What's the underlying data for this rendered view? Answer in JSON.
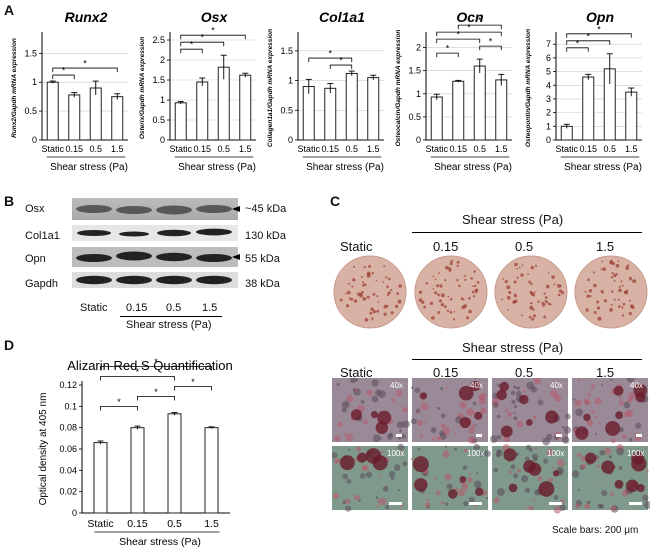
{
  "panels": {
    "a": "A",
    "b": "B",
    "c": "C",
    "d": "D"
  },
  "chart_data": [
    {
      "type": "bar",
      "title": "Runx2",
      "ylabel": "Runx2/Gapdh mRNA expression",
      "xlabel": "Shear stress (Pa)",
      "categories": [
        "Static",
        "0.15",
        "0.5",
        "1.5"
      ],
      "values": [
        1.0,
        0.78,
        0.9,
        0.75
      ],
      "errors": [
        0.02,
        0.04,
        0.12,
        0.05
      ],
      "ylim": [
        0,
        1.8
      ],
      "yticks": [
        0,
        0.5,
        1,
        1.5
      ],
      "yticklabels": [
        "0",
        "0.5",
        "1",
        "1.5"
      ],
      "grid": true,
      "sig": [
        {
          "from": 0,
          "to": 1,
          "label": "*"
        },
        {
          "from": 0,
          "to": 3,
          "label": "*"
        }
      ]
    },
    {
      "type": "bar",
      "title": "Osx",
      "ylabel": "Osterix/Gapdh mRNA expression",
      "xlabel": "Shear stress (Pa)",
      "categories": [
        "Static",
        "0.15",
        "0.5",
        "1.5"
      ],
      "values": [
        0.93,
        1.45,
        1.82,
        1.62
      ],
      "errors": [
        0.03,
        0.1,
        0.3,
        0.05
      ],
      "ylim": [
        0,
        2.6
      ],
      "yticks": [
        0,
        0.5,
        1,
        1.5,
        2,
        2.5
      ],
      "yticklabels": [
        "0",
        "0.5",
        "1",
        "1.5",
        "2",
        "2.5"
      ],
      "grid": true,
      "sig": [
        {
          "from": 0,
          "to": 1,
          "label": "*"
        },
        {
          "from": 0,
          "to": 2,
          "label": "*"
        },
        {
          "from": 0,
          "to": 3,
          "label": "*"
        }
      ]
    },
    {
      "type": "bar",
      "title": "Col1a1",
      "ylabel": "Collagen1a1/Gapdh mRNA expression",
      "xlabel": "Shear stress (Pa)",
      "categories": [
        "Static",
        "0.15",
        "0.5",
        "1.5"
      ],
      "values": [
        0.9,
        0.87,
        1.12,
        1.05
      ],
      "errors": [
        0.12,
        0.08,
        0.04,
        0.04
      ],
      "ylim": [
        0,
        1.75
      ],
      "yticks": [
        0,
        0.5,
        1,
        1.5
      ],
      "yticklabels": [
        "0",
        "0.5",
        "1",
        "1.5"
      ],
      "grid": true,
      "sig": [
        {
          "from": 1,
          "to": 2,
          "label": "*"
        },
        {
          "from": 0,
          "to": 2,
          "label": "*"
        }
      ]
    },
    {
      "type": "bar",
      "title": "Ocn",
      "ylabel": "Osteocalcin/Gapdh mRNA expression",
      "xlabel": "Shear stress (Pa)",
      "categories": [
        "Static",
        "0.15",
        "0.5",
        "1.5"
      ],
      "values": [
        0.93,
        1.27,
        1.6,
        1.3
      ],
      "errors": [
        0.06,
        0.02,
        0.15,
        0.12
      ],
      "ylim": [
        0,
        2.25
      ],
      "yticks": [
        0,
        0.5,
        1,
        1.5,
        2
      ],
      "yticklabels": [
        "0",
        "0.5",
        "1",
        "1.5",
        "2"
      ],
      "grid": true,
      "sig": [
        {
          "from": 0,
          "to": 1,
          "label": "*"
        },
        {
          "from": 2,
          "to": 3,
          "label": "*"
        },
        {
          "from": 0,
          "to": 2,
          "label": "*"
        },
        {
          "from": 0,
          "to": 3,
          "label": "*"
        },
        {
          "from": 1,
          "to": 3,
          "label": "*"
        }
      ]
    },
    {
      "type": "bar",
      "title": "Opn",
      "ylabel": "Osteopontin/Gapdh mRNA expression",
      "xlabel": "Shear stress (Pa)",
      "categories": [
        "Static",
        "0.15",
        "0.5",
        "1.5"
      ],
      "values": [
        1.0,
        4.6,
        5.2,
        3.5
      ],
      "errors": [
        0.15,
        0.2,
        1.1,
        0.3
      ],
      "ylim": [
        0,
        7.6
      ],
      "yticks": [
        0,
        1,
        2,
        3,
        4,
        5,
        6,
        7
      ],
      "yticklabels": [
        "0",
        "1",
        "2",
        "3",
        "4",
        "5",
        "6",
        "7"
      ],
      "grid": true,
      "sig": [
        {
          "from": 0,
          "to": 1,
          "label": "*"
        },
        {
          "from": 0,
          "to": 2,
          "label": "*"
        },
        {
          "from": 0,
          "to": 3,
          "label": "*"
        }
      ]
    },
    {
      "type": "bar",
      "title": "Alizarin Red S Quantification",
      "ylabel": "Optical density at 405 nm",
      "xlabel": "Shear stress (Pa)",
      "categories": [
        "Static",
        "0.15",
        "0.5",
        "1.5"
      ],
      "values": [
        0.066,
        0.08,
        0.093,
        0.08
      ],
      "errors": [
        0.0015,
        0.0015,
        0.0012,
        0.0008
      ],
      "ylim": [
        0,
        0.12
      ],
      "yticks": [
        0,
        0.02,
        0.04,
        0.06,
        0.08,
        0.1,
        0.12
      ],
      "yticklabels": [
        "0",
        "0.02",
        "0.04",
        "0.06",
        "0.08",
        "0.1",
        "0.12"
      ],
      "grid": false,
      "sig": [
        {
          "from": 0,
          "to": 1,
          "label": "*"
        },
        {
          "from": 1,
          "to": 2,
          "label": "*"
        },
        {
          "from": 2,
          "to": 3,
          "label": "*"
        },
        {
          "from": 0,
          "to": 2,
          "label": "*"
        },
        {
          "from": 0,
          "to": 3,
          "label": "*"
        }
      ]
    }
  ],
  "blot": {
    "rows": [
      {
        "label": "Osx",
        "kda": "~45 kDa"
      },
      {
        "label": "Col1a1",
        "kda": "130 kDa"
      },
      {
        "label": "Opn",
        "kda": "55 kDa"
      },
      {
        "label": "Gapdh",
        "kda": "38 kDa"
      }
    ],
    "lanes": [
      "Static",
      "0.15",
      "0.5",
      "1.5"
    ],
    "xlabel": "Shear stress (Pa)"
  },
  "stain": {
    "header": "Shear stress (Pa)",
    "header2": "Shear stress (Pa)",
    "cols": [
      "Static",
      "0.15",
      "0.5",
      "1.5"
    ],
    "mag1": "40x",
    "mag2": "100x",
    "scale": "Scale bars: 200 μm"
  },
  "colors": {
    "bar": "#ffffff",
    "edge": "#222222",
    "grid": "#cccccc",
    "dish": "#d9b2a6",
    "dish_spot": "#9a3a2c",
    "micro_top": "#9a8a98",
    "micro_bottom": "#7f9a8c"
  }
}
